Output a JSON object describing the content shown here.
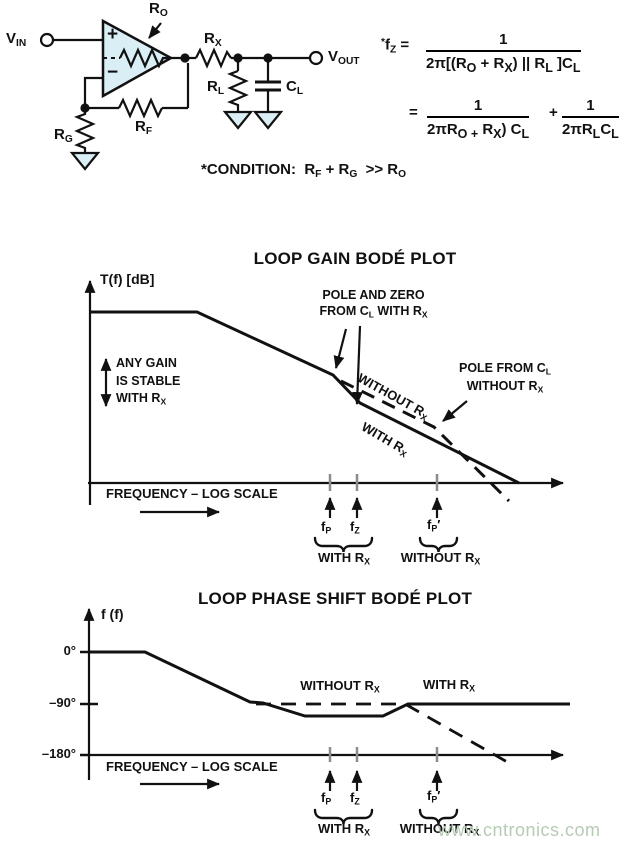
{
  "circuit": {
    "vin": "V<sub>IN</sub>",
    "vout": "V<sub>OUT</sub>",
    "ro": "R<sub>O</sub>",
    "rx": "R<sub>X</sub>",
    "rl": "R<sub>L</sub>",
    "cl": "C<sub>L</sub>",
    "rf": "R<sub>F</sub>",
    "rg": "R<sub>G</sub>",
    "plus": "+",
    "minus": "−",
    "condition": "*CONDITION:&nbsp; R<sub>F</sub> + R<sub>G</sub> &nbsp;&gt;&gt; R<sub>O</sub>"
  },
  "formula": {
    "lhs": "<sup>*</sup>f<sub>Z</sub> =",
    "frac1_num": "1",
    "frac1_den": "2π[(R<sub>O</sub> + R<sub>X</sub>) || R<sub>L</sub> ]C<sub>L</sub>",
    "eq2": "=",
    "frac2_num": "1",
    "frac2_den": "2πR<sub>O +</sub> R<sub>X</sub>) C<sub>L</sub>",
    "plus": "+",
    "frac3_num": "1",
    "frac3_den": "2πR<sub>L</sub>C<sub>L</sub>"
  },
  "gain_plot": {
    "title": "LOOP GAIN BODÉ PLOT",
    "ylabel": "T(f) [dB]",
    "pole_zero_line1": "POLE AND ZERO",
    "pole_zero_line2": "FROM C<sub>L</sub> WITH R<sub>X</sub>",
    "pole_line1": "POLE FROM C<sub>L</sub>",
    "pole_line2": "WITHOUT R<sub>X</sub>",
    "stable_line1": "ANY GAIN",
    "stable_line2": "IS STABLE",
    "stable_line3": "WITH R<sub>X</sub>",
    "curve_without": "WITHOUT R<sub>X</sub>",
    "curve_with": "WITH R<sub>X</sub>",
    "xlabel": "FREQUENCY – LOG SCALE",
    "f_p": "f<sub>P</sub>",
    "f_z": "f<sub>Z</sub>",
    "f_p_prime": "f<sub>P</sub>′",
    "group_with": "WITH R<sub>X</sub>",
    "group_without": "WITHOUT R<sub>X</sub>"
  },
  "phase_plot": {
    "title": "LOOP PHASE SHIFT BODÉ PLOT",
    "ylabel": "f (f)",
    "tick_0": "0°",
    "tick_90": "–90°",
    "tick_180": "–180°",
    "curve_without": "WITHOUT R<sub>X</sub>",
    "curve_with": "WITH R<sub>X</sub>",
    "xlabel": "FREQUENCY – LOG SCALE",
    "f_p": "f<sub>P</sub>",
    "f_z": "f<sub>Z</sub>",
    "f_p_prime": "f<sub>P</sub>′",
    "group_with": "WITH R<sub>X</sub>",
    "group_without": "WITHOUT R<sub>X</sub>"
  },
  "watermark": {
    "text": "www.cntronics.com",
    "color": "#b6ccb3"
  },
  "colors": {
    "opamp_fill": "#d9eef5",
    "line": "#000000",
    "tick_gray": "#8c8c8c"
  }
}
